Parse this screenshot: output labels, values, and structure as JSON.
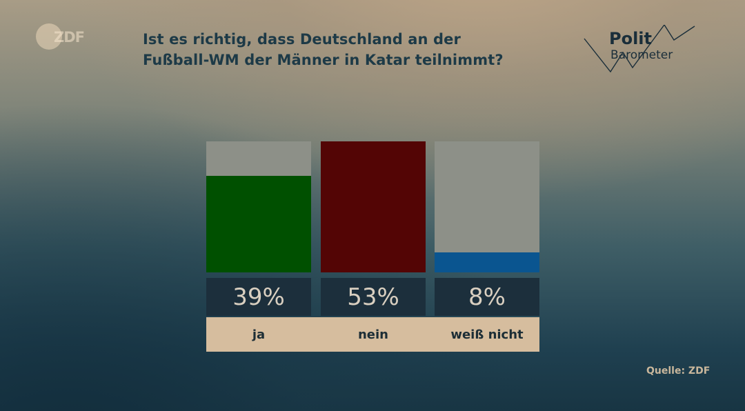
{
  "logo": {
    "text": "ZDF"
  },
  "question": {
    "line1": "Ist es richtig, dass Deutschland an der",
    "line2": "Fußball-WM der Männer in Katar teilnimmt?"
  },
  "brand": {
    "line1": "Polit",
    "line2": "Barometer"
  },
  "source": "Quelle: ZDF",
  "colors": {
    "ja": "#005000",
    "nein": "#530505",
    "weiss_nicht": "#0a5590",
    "bar_background": "#8d9088",
    "percent_box": "#1c2f3c",
    "label_strip": "#d6bd9e"
  },
  "chart_data": {
    "type": "bar",
    "title": "Ist es richtig, dass Deutschland an der Fußball-WM der Männer in Katar teilnimmt?",
    "categories": [
      "ja",
      "nein",
      "weiß nicht"
    ],
    "values": [
      39,
      53,
      8
    ],
    "value_labels": [
      "39%",
      "53%",
      "8%"
    ],
    "unit": "%",
    "ylim": [
      0,
      53
    ],
    "grid": false,
    "legend": "none"
  }
}
